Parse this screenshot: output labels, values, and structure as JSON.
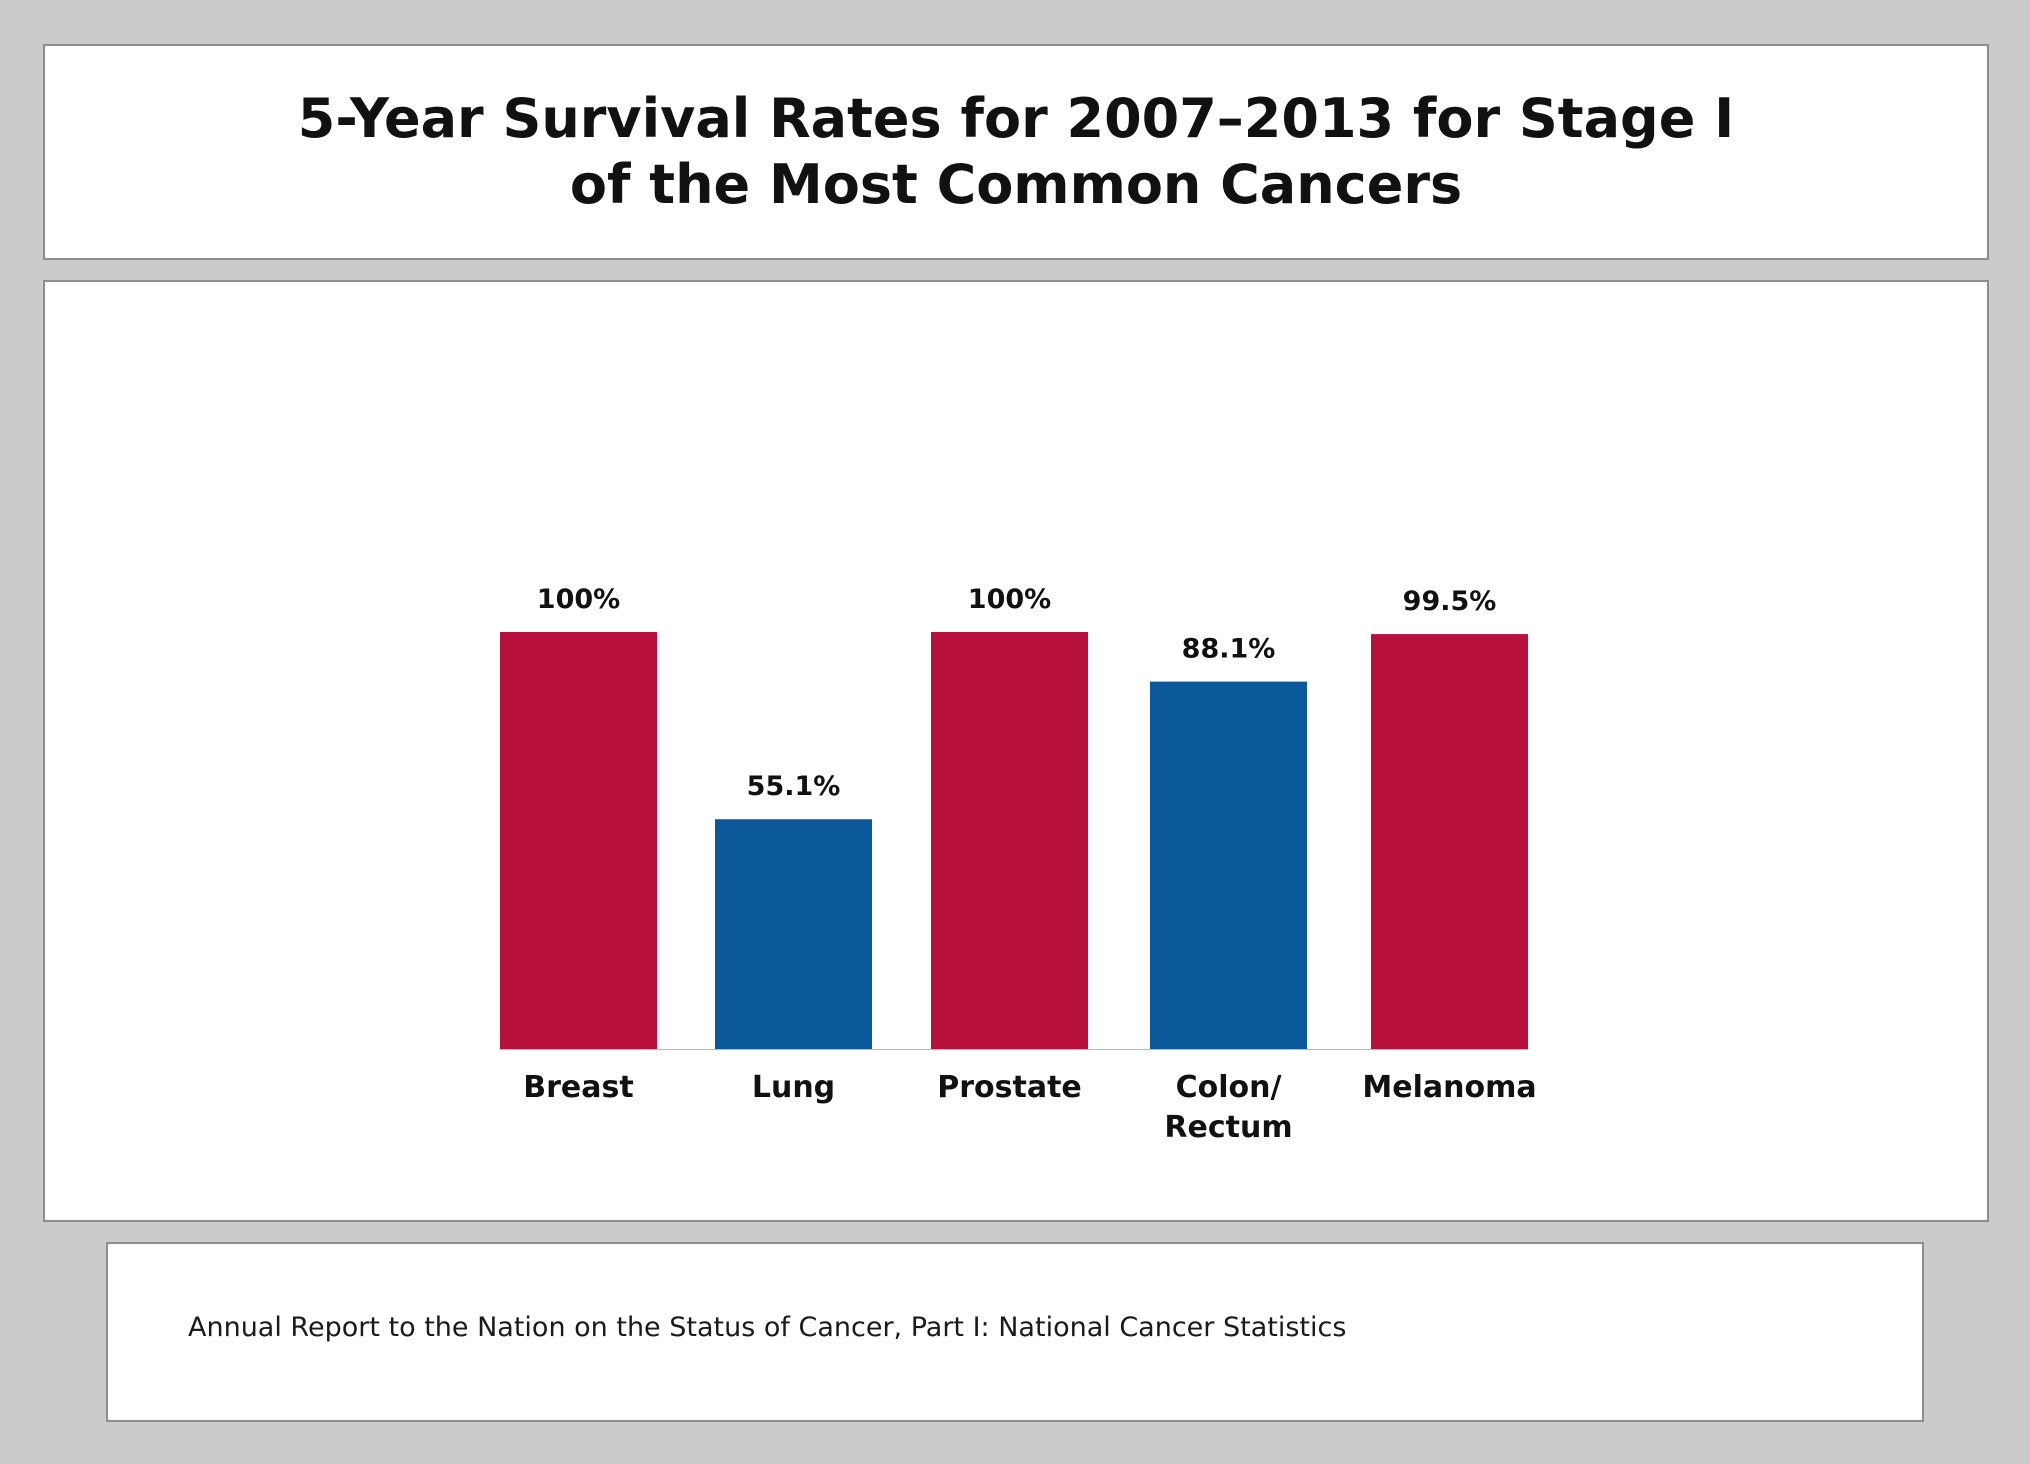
{
  "title_lines": [
    "5-Year Survival Rates for 2007–2013 for Stage I",
    "of the Most Common Cancers"
  ],
  "source": "Annual Report to the Nation on the Status of Cancer, Part I: National Cancer Statistics",
  "colors": {
    "red": "#b8103c",
    "blue": "#0a5799",
    "background": "#cbcbcb",
    "panel": "#ffffff",
    "border": "#8e8e8e"
  },
  "chart_data": {
    "type": "bar",
    "title": "5-Year Survival Rates for 2007–2013 for Stage I of the Most Common Cancers",
    "xlabel": "",
    "ylabel": "",
    "ylim": [
      0,
      100
    ],
    "grid": false,
    "categories": [
      [
        "Breast"
      ],
      [
        "Lung"
      ],
      [
        "Prostate"
      ],
      [
        "Colon/",
        "Rectum"
      ],
      [
        "Melanoma"
      ]
    ],
    "values": [
      100,
      55.1,
      100,
      88.1,
      99.5
    ],
    "data_labels": [
      "100%",
      "55.1%",
      "100%",
      "88.1%",
      "99.5%"
    ],
    "bar_colors": [
      "#b8103c",
      "#0a5799",
      "#b8103c",
      "#0a5799",
      "#b8103c"
    ]
  }
}
